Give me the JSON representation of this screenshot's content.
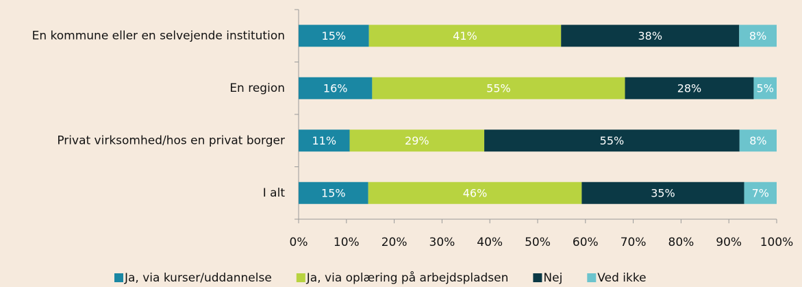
{
  "chart_data": {
    "type": "stacked_percent_bar",
    "orientation": "horizontal",
    "categories": [
      "En kommune eller en selvejende institution",
      "En region",
      "Privat virksomhed/hos en privat borger",
      "I alt"
    ],
    "series": [
      {
        "name": "Ja, via kurser/uddannelse",
        "color": "#1a87a3",
        "values": [
          15,
          16,
          11,
          15
        ],
        "value_labels": [
          "15%",
          "16%",
          "11%",
          "15%"
        ]
      },
      {
        "name": "Ja, via oplæring på arbejdspladsen",
        "color": "#b8d340",
        "values": [
          41,
          55,
          29,
          46
        ],
        "value_labels": [
          "41%",
          "55%",
          "29%",
          "46%"
        ]
      },
      {
        "name": "Nej",
        "color": "#0b3945",
        "values": [
          38,
          28,
          55,
          35
        ],
        "value_labels": [
          "38%",
          "28%",
          "55%",
          "35%"
        ]
      },
      {
        "name": "Ved ikke",
        "color": "#6cc4cd",
        "values": [
          8,
          5,
          8,
          7
        ],
        "value_labels": [
          "8%",
          "5%",
          "8%",
          "7%"
        ]
      }
    ],
    "xlim": [
      0,
      100
    ],
    "xticks": [
      {
        "value": 0,
        "label": "0%"
      },
      {
        "value": 10,
        "label": "10%"
      },
      {
        "value": 20,
        "label": "20%"
      },
      {
        "value": 30,
        "label": "30%"
      },
      {
        "value": 40,
        "label": "40%"
      },
      {
        "value": 50,
        "label": "50%"
      },
      {
        "value": 60,
        "label": "60%"
      },
      {
        "value": 70,
        "label": "70%"
      },
      {
        "value": 80,
        "label": "80%"
      },
      {
        "value": 90,
        "label": "90%"
      },
      {
        "value": 100,
        "label": "100%"
      }
    ],
    "legend": "bottom"
  }
}
